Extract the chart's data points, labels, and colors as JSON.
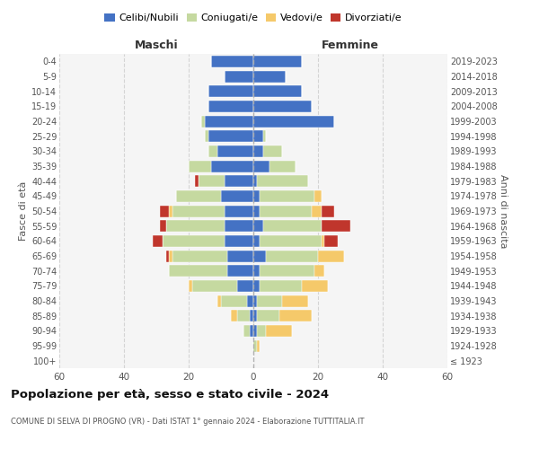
{
  "age_groups": [
    "100+",
    "95-99",
    "90-94",
    "85-89",
    "80-84",
    "75-79",
    "70-74",
    "65-69",
    "60-64",
    "55-59",
    "50-54",
    "45-49",
    "40-44",
    "35-39",
    "30-34",
    "25-29",
    "20-24",
    "15-19",
    "10-14",
    "5-9",
    "0-4"
  ],
  "birth_years": [
    "≤ 1923",
    "1924-1928",
    "1929-1933",
    "1934-1938",
    "1939-1943",
    "1944-1948",
    "1949-1953",
    "1954-1958",
    "1959-1963",
    "1964-1968",
    "1969-1973",
    "1974-1978",
    "1979-1983",
    "1984-1988",
    "1989-1993",
    "1994-1998",
    "1999-2003",
    "2004-2008",
    "2009-2013",
    "2014-2018",
    "2019-2023"
  ],
  "maschi": {
    "celibi": [
      0,
      0,
      1,
      1,
      2,
      5,
      8,
      8,
      9,
      9,
      9,
      10,
      9,
      13,
      11,
      14,
      15,
      14,
      14,
      9,
      13
    ],
    "coniugati": [
      0,
      0,
      2,
      4,
      8,
      14,
      18,
      17,
      19,
      18,
      16,
      14,
      8,
      7,
      3,
      1,
      1,
      0,
      0,
      0,
      0
    ],
    "vedovi": [
      0,
      0,
      0,
      2,
      1,
      1,
      0,
      1,
      0,
      0,
      1,
      0,
      0,
      0,
      0,
      0,
      0,
      0,
      0,
      0,
      0
    ],
    "divorziati": [
      0,
      0,
      0,
      0,
      0,
      0,
      0,
      1,
      3,
      2,
      3,
      0,
      1,
      0,
      0,
      0,
      0,
      0,
      0,
      0,
      0
    ]
  },
  "femmine": {
    "nubili": [
      0,
      0,
      1,
      1,
      1,
      2,
      2,
      4,
      2,
      3,
      2,
      2,
      1,
      5,
      3,
      3,
      25,
      18,
      15,
      10,
      15
    ],
    "coniugate": [
      0,
      1,
      3,
      7,
      8,
      13,
      17,
      16,
      19,
      18,
      16,
      17,
      16,
      8,
      6,
      1,
      0,
      0,
      0,
      0,
      0
    ],
    "vedove": [
      0,
      1,
      8,
      10,
      8,
      8,
      3,
      8,
      1,
      0,
      3,
      2,
      0,
      0,
      0,
      0,
      0,
      0,
      0,
      0,
      0
    ],
    "divorziate": [
      0,
      0,
      0,
      0,
      0,
      0,
      0,
      0,
      4,
      9,
      4,
      0,
      0,
      0,
      0,
      0,
      0,
      0,
      0,
      0,
      0
    ]
  },
  "colors": {
    "celibi_nubili": "#4472c4",
    "coniugati": "#c5d9a0",
    "vedovi": "#f5c96a",
    "divorziati": "#c0362c"
  },
  "xlim": 60,
  "title": "Popolazione per età, sesso e stato civile - 2024",
  "subtitle": "COMUNE DI SELVA DI PROGNO (VR) - Dati ISTAT 1° gennaio 2024 - Elaborazione TUTTITALIA.IT",
  "ylabel_left": "Fasce di età",
  "ylabel_right": "Anni di nascita",
  "header_maschi": "Maschi",
  "header_femmine": "Femmine",
  "legend_labels": [
    "Celibi/Nubili",
    "Coniugati/e",
    "Vedovi/e",
    "Divorziati/e"
  ],
  "bg_color": "#ffffff",
  "plot_bg_color": "#f5f5f5"
}
